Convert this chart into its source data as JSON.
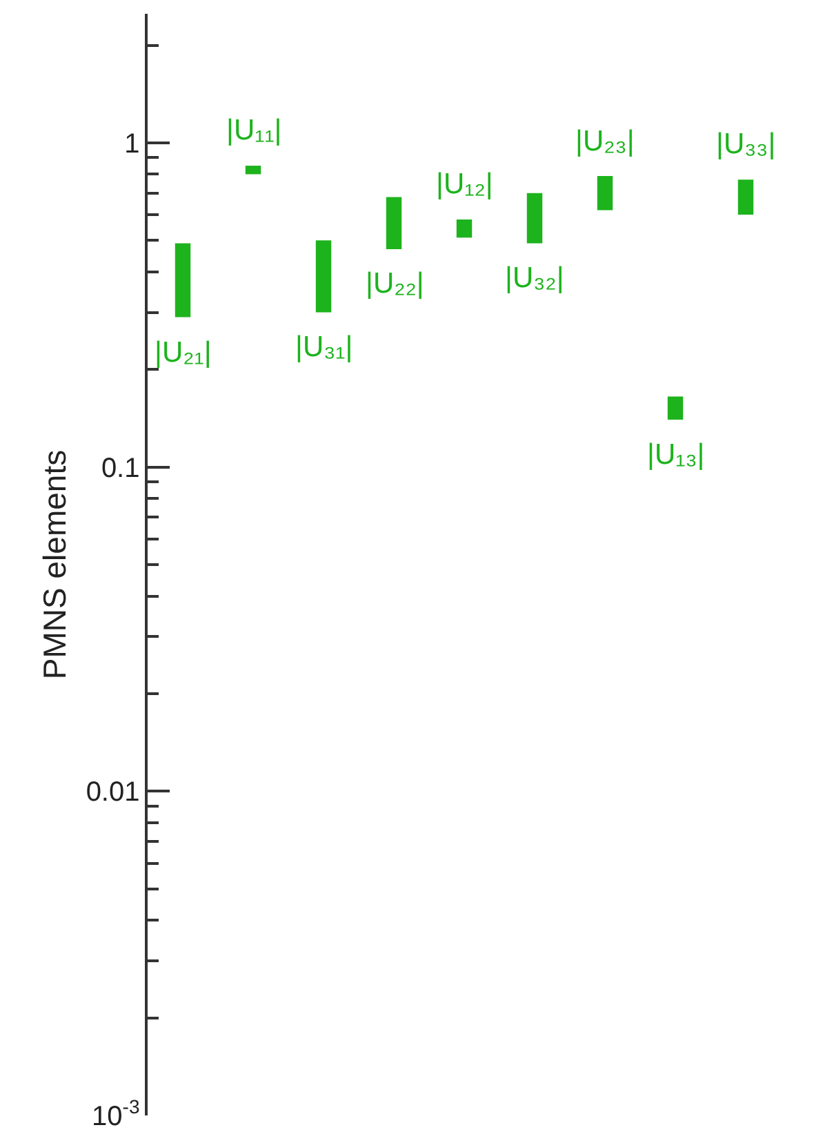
{
  "chart_data": {
    "type": "bar",
    "ylabel": "PMNS elements",
    "log": true,
    "categories": [
      null,
      null,
      null,
      null,
      null,
      null,
      null,
      null,
      null
    ],
    "ylim": [
      0.001,
      2.5
    ],
    "yticks": [
      {
        "value": 0.001,
        "label": "10$^{-3}$"
      },
      {
        "value": 0.002,
        "label": null
      },
      {
        "value": 0.003,
        "label": null
      },
      {
        "value": 0.004,
        "label": null
      },
      {
        "value": 0.005,
        "label": null
      },
      {
        "value": 0.006,
        "label": null
      },
      {
        "value": 0.007,
        "label": null
      },
      {
        "value": 0.008,
        "label": null
      },
      {
        "value": 0.009,
        "label": null
      },
      0.01,
      {
        "value": 0.02,
        "label": null
      },
      {
        "value": 0.03,
        "label": null
      },
      {
        "value": 0.04,
        "label": null
      },
      {
        "value": 0.05,
        "label": null
      },
      {
        "value": 0.06,
        "label": null
      },
      {
        "value": 0.07,
        "label": null
      },
      {
        "value": 0.08,
        "label": null
      },
      {
        "value": 0.09,
        "label": null
      },
      0.1,
      {
        "value": 0.2,
        "label": null
      },
      {
        "value": 0.3,
        "label": null
      },
      {
        "value": 0.4,
        "label": null
      },
      {
        "value": 0.5,
        "label": null
      },
      {
        "value": 0.6,
        "label": null
      },
      {
        "value": 0.7,
        "label": null
      },
      {
        "value": 0.8,
        "label": null
      },
      {
        "value": 0.9,
        "label": null
      },
      1,
      {
        "value": 2,
        "label": null
      }
    ],
    "series": [
      {
        "color": "#1db31d",
        "base": [
          0.29,
          0.8,
          0.3,
          0.47,
          0.51,
          0.49,
          0.62,
          0.14,
          0.6
        ],
        "values": [
          0.2,
          0.05,
          0.2,
          0.21,
          0.07,
          0.21,
          0.17,
          0.025,
          0.17
        ],
        "value_labels": [
          "|U₂₁|",
          "|U₁₁|",
          "|U₃₁|",
          "|U₂₂|",
          "|U₁₂|",
          "|U₃₂|",
          "|U₂₃|",
          "|U₁₃|",
          "|U₃₃|"
        ]
      }
    ]
  }
}
